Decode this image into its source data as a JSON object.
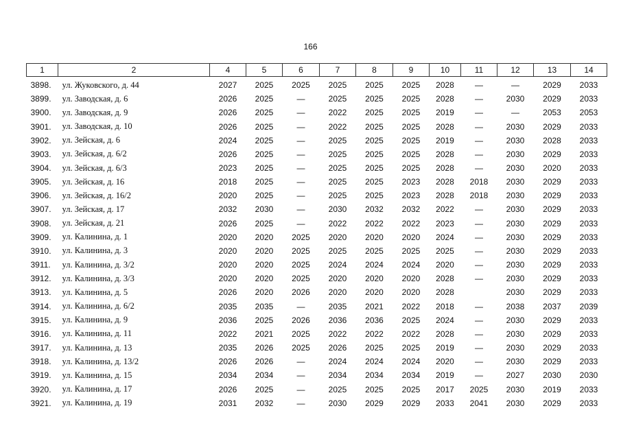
{
  "page_number": "166",
  "table": {
    "header": [
      "1",
      "2",
      "4",
      "5",
      "6",
      "7",
      "8",
      "9",
      "10",
      "11",
      "12",
      "13",
      "14"
    ],
    "rows": [
      [
        "3898.",
        "ул. Жуковского, д. 44",
        "2027",
        "2025",
        "2025",
        "2025",
        "2025",
        "2025",
        "2028",
        "—",
        "—",
        "2029",
        "2033"
      ],
      [
        "3899.",
        "ул. Заводская, д. 6",
        "2026",
        "2025",
        "—",
        "2025",
        "2025",
        "2025",
        "2028",
        "—",
        "2030",
        "2029",
        "2033"
      ],
      [
        "3900.",
        "ул. Заводская, д. 9",
        "2026",
        "2025",
        "—",
        "2022",
        "2025",
        "2025",
        "2019",
        "—",
        "—",
        "2053",
        "2053"
      ],
      [
        "3901.",
        "ул. Заводская, д. 10",
        "2026",
        "2025",
        "—",
        "2022",
        "2025",
        "2025",
        "2028",
        "—",
        "2030",
        "2029",
        "2033"
      ],
      [
        "3902.",
        "ул. Зейская, д. 6",
        "2024",
        "2025",
        "—",
        "2025",
        "2025",
        "2025",
        "2019",
        "—",
        "2030",
        "2028",
        "2033"
      ],
      [
        "3903.",
        "ул. Зейская, д. 6/2",
        "2026",
        "2025",
        "—",
        "2025",
        "2025",
        "2025",
        "2028",
        "—",
        "2030",
        "2029",
        "2033"
      ],
      [
        "3904.",
        "ул. Зейская, д. 6/3",
        "2023",
        "2025",
        "—",
        "2025",
        "2025",
        "2025",
        "2028",
        "—",
        "2030",
        "2020",
        "2033"
      ],
      [
        "3905.",
        "ул. Зейская, д. 16",
        "2018",
        "2025",
        "—",
        "2025",
        "2025",
        "2023",
        "2028",
        "2018",
        "2030",
        "2029",
        "2033"
      ],
      [
        "3906.",
        "ул. Зейская, д. 16/2",
        "2020",
        "2025",
        "—",
        "2025",
        "2025",
        "2023",
        "2028",
        "2018",
        "2030",
        "2029",
        "2033"
      ],
      [
        "3907.",
        "ул. Зейская, д. 17",
        "2032",
        "2030",
        "—",
        "2030",
        "2032",
        "2032",
        "2022",
        "—",
        "2030",
        "2029",
        "2033"
      ],
      [
        "3908.",
        "ул. Зейская, д. 21",
        "2026",
        "2025",
        "—",
        "2022",
        "2022",
        "2022",
        "2023",
        "—",
        "2030",
        "2029",
        "2033"
      ],
      [
        "3909.",
        "ул. Калинина, д. 1",
        "2020",
        "2020",
        "2025",
        "2020",
        "2020",
        "2020",
        "2024",
        "—",
        "2030",
        "2029",
        "2033"
      ],
      [
        "3910.",
        "ул. Калинина, д. 3",
        "2020",
        "2020",
        "2025",
        "2025",
        "2025",
        "2025",
        "2025",
        "—",
        "2030",
        "2029",
        "2033"
      ],
      [
        "3911.",
        "ул. Калинина, д. 3/2",
        "2020",
        "2020",
        "2025",
        "2024",
        "2024",
        "2024",
        "2020",
        "—",
        "2030",
        "2029",
        "2033"
      ],
      [
        "3912.",
        "ул. Калинина, д. 3/3",
        "2020",
        "2020",
        "2025",
        "2020",
        "2020",
        "2020",
        "2028",
        "—",
        "2030",
        "2029",
        "2033"
      ],
      [
        "3913.",
        "ул. Калинина, д. 5",
        "2026",
        "2020",
        "2026",
        "2020",
        "2020",
        "2020",
        "2028",
        null,
        "2030",
        "2029",
        "2033"
      ],
      [
        "3914.",
        "ул. Калинина, д. 6/2",
        "2035",
        "2035",
        "—",
        "2035",
        "2021",
        "2022",
        "2018",
        "—",
        "2038",
        "2037",
        "2039"
      ],
      [
        "3915.",
        "ул. Калинина, д. 9",
        "2036",
        "2025",
        "2026",
        "2036",
        "2036",
        "2025",
        "2024",
        "—",
        "2030",
        "2029",
        "2033"
      ],
      [
        "3916.",
        "ул. Калинина, д. 11",
        "2022",
        "2021",
        "2025",
        "2022",
        "2022",
        "2022",
        "2028",
        "—",
        "2030",
        "2029",
        "2033"
      ],
      [
        "3917.",
        "ул. Калинина, д. 13",
        "2035",
        "2026",
        "2025",
        "2026",
        "2025",
        "2025",
        "2019",
        "—",
        "2030",
        "2029",
        "2033"
      ],
      [
        "3918.",
        "ул. Калинина, д. 13/2",
        "2026",
        "2026",
        "—",
        "2024",
        "2024",
        "2024",
        "2020",
        "—",
        "2030",
        "2029",
        "2033"
      ],
      [
        "3919.",
        "ул. Калинина, д. 15",
        "2034",
        "2034",
        "—",
        "2034",
        "2034",
        "2034",
        "2019",
        "—",
        "2027",
        "2030",
        "2030"
      ],
      [
        "3920.",
        "ул. Калинина, д. 17",
        "2026",
        "2025",
        "—",
        "2025",
        "2025",
        "2025",
        "2017",
        "2025",
        "2030",
        "2019",
        "2033"
      ],
      [
        "3921.",
        "ул. Калинина, д. 19",
        "2031",
        "2032",
        "—",
        "2030",
        "2029",
        "2029",
        "2033",
        "2041",
        "2030",
        "2029",
        "2033"
      ]
    ]
  }
}
